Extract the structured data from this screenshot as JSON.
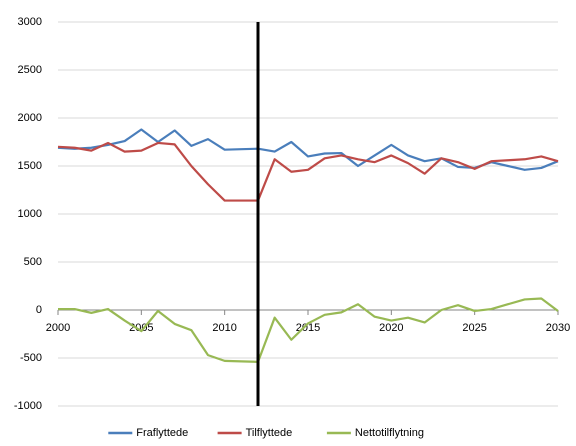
{
  "chart_data": {
    "type": "line",
    "x": [
      2000,
      2001,
      2002,
      2003,
      2004,
      2005,
      2006,
      2007,
      2008,
      2009,
      2010,
      2011,
      2012,
      2013,
      2014,
      2015,
      2016,
      2017,
      2018,
      2019,
      2020,
      2021,
      2022,
      2023,
      2024,
      2025,
      2026,
      2027,
      2028,
      2029,
      2030
    ],
    "series": [
      {
        "name": "Fraflyttede",
        "color": "#4a7ebb",
        "values": [
          1690,
          1680,
          1690,
          1720,
          1760,
          1880,
          1750,
          1870,
          1710,
          1780,
          1670,
          1675,
          1680,
          1650,
          1750,
          1600,
          1630,
          1635,
          1500,
          1610,
          1720,
          1610,
          1550,
          1580,
          1490,
          1480,
          1540,
          1500,
          1460,
          1480,
          1550
        ]
      },
      {
        "name": "Tilflyttede",
        "color": "#be4b48",
        "values": [
          1700,
          1690,
          1660,
          1740,
          1650,
          1660,
          1740,
          1725,
          1500,
          1310,
          1140,
          1140,
          1140,
          1570,
          1440,
          1460,
          1580,
          1610,
          1570,
          1540,
          1610,
          1530,
          1420,
          1580,
          1540,
          1470,
          1550,
          1560,
          1570,
          1600,
          1550
        ]
      },
      {
        "name": "Nettotilflytning",
        "color": "#98b954",
        "values": [
          10,
          10,
          -30,
          10,
          -110,
          -220,
          -10,
          -145,
          -210,
          -470,
          -530,
          -535,
          -540,
          -80,
          -310,
          -140,
          -50,
          -25,
          60,
          -70,
          -110,
          -80,
          -130,
          0,
          50,
          -10,
          10,
          60,
          110,
          120,
          -10
        ]
      }
    ],
    "xlim": [
      2000,
      2030
    ],
    "xticks": [
      2000,
      2005,
      2010,
      2015,
      2020,
      2025,
      2030
    ],
    "ylim": [
      -1000,
      3000
    ],
    "yticks": [
      -1000,
      -500,
      0,
      500,
      1000,
      1500,
      2000,
      2500,
      3000
    ],
    "grid": true,
    "legend": "bottom",
    "vline": 2012
  }
}
